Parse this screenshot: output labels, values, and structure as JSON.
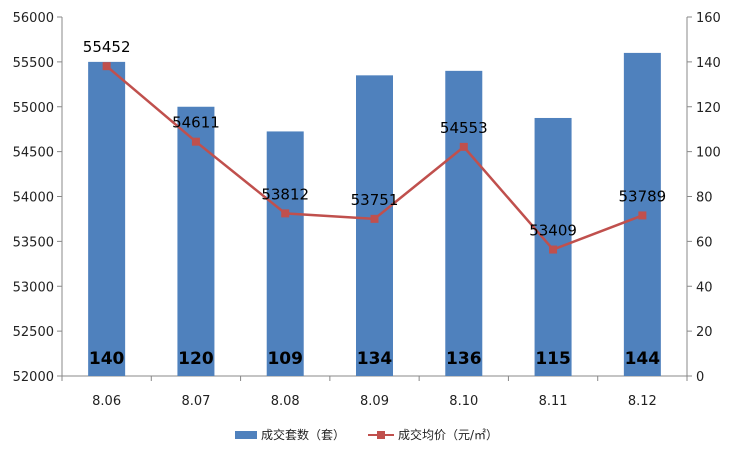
{
  "chart_data": {
    "type": "bar",
    "title": "",
    "categories": [
      "8.06",
      "8.07",
      "8.08",
      "8.09",
      "8.10",
      "8.11",
      "8.12"
    ],
    "series": [
      {
        "name": "成交套数（套）",
        "type": "bar",
        "axis": "right",
        "values": [
          140,
          120,
          109,
          134,
          136,
          115,
          144
        ],
        "color": "#4F81BD"
      },
      {
        "name": "成交均价（元/㎡）",
        "type": "line",
        "axis": "left",
        "values": [
          55452,
          54611,
          53812,
          53751,
          54553,
          53409,
          53789
        ],
        "color": "#C0504D"
      }
    ],
    "left_axis": {
      "min": 52000,
      "max": 56000,
      "step": 500,
      "ticks": [
        "52000",
        "52500",
        "53000",
        "53500",
        "54000",
        "54500",
        "55000",
        "55500",
        "56000"
      ]
    },
    "right_axis": {
      "min": 0,
      "max": 160,
      "step": 20,
      "ticks": [
        "0",
        "20",
        "40",
        "60",
        "80",
        "100",
        "120",
        "140",
        "160"
      ]
    },
    "grid": false,
    "legend_position": "bottom"
  }
}
